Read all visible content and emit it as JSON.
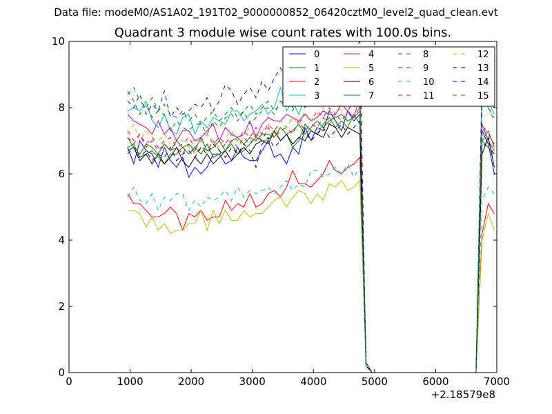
{
  "chart_data": {
    "type": "line",
    "supertitle": "Data file: modeM0/AS1A02_191T02_9000000852_06420cztM0_level2_quad_clean.evt",
    "title": "Quadrant 3 module wise count rates with 100.0s bins.",
    "xlabel": "",
    "ylabel": "",
    "x_offset_label": "+2.18579e8",
    "xlim": [
      0,
      7000
    ],
    "ylim": [
      0,
      10
    ],
    "xticks": [
      0,
      1000,
      2000,
      3000,
      4000,
      5000,
      6000,
      7000
    ],
    "xtick_labels": [
      "0",
      "1000",
      "2000",
      "3000",
      "4000",
      "5000",
      "6000",
      "7000"
    ],
    "yticks": [
      0,
      2,
      4,
      6,
      8,
      10
    ],
    "ytick_labels": [
      "0",
      "2",
      "4",
      "6",
      "8",
      "10"
    ],
    "legend_location": "upper-right",
    "x": [
      960,
      1060,
      1160,
      1260,
      1360,
      1460,
      1560,
      1660,
      1760,
      1860,
      1960,
      2060,
      2160,
      2260,
      2360,
      2460,
      2560,
      2660,
      2760,
      2860,
      2960,
      3060,
      3160,
      3260,
      3360,
      3460,
      3560,
      3660,
      3760,
      3860,
      3960,
      4060,
      4160,
      4260,
      4360,
      4460,
      4560,
      4660,
      4760,
      4860,
      4960,
      5060,
      5160,
      5260,
      5360,
      5460,
      5560,
      5660,
      5760,
      5860,
      5960,
      6060,
      6160,
      6260,
      6360,
      6460,
      6560,
      6660,
      6760,
      6860,
      6960
    ],
    "series": [
      {
        "name": "0",
        "style": "solid",
        "color": "#0000ff",
        "values": [
          6.8,
          6.3,
          7.0,
          6.7,
          6.6,
          6.2,
          6.8,
          6.4,
          6.2,
          6.5,
          5.9,
          6.2,
          6.0,
          6.2,
          6.6,
          6.6,
          6.3,
          6.4,
          6.8,
          6.5,
          6.4,
          6.4,
          6.7,
          7.0,
          6.5,
          6.6,
          6.3,
          6.8,
          6.6,
          7.4,
          7.0,
          7.4,
          7.3,
          7.9,
          7.6,
          7.3,
          7.9,
          7.6,
          7.8,
          0.3,
          0.0,
          0.0,
          0.0,
          0.0,
          0.0,
          0.0,
          0.0,
          0.0,
          0.0,
          0.0,
          0.0,
          0.0,
          0.0,
          0.0,
          0.0,
          0.0,
          0.0,
          0.0,
          7.3,
          6.9,
          6.0
        ]
      },
      {
        "name": "1",
        "style": "solid",
        "color": "#008000",
        "values": [
          6.8,
          6.9,
          6.5,
          6.6,
          6.7,
          6.5,
          6.3,
          6.6,
          6.6,
          6.8,
          6.6,
          6.8,
          6.6,
          6.9,
          6.5,
          6.6,
          6.7,
          6.9,
          6.6,
          6.7,
          6.9,
          7.1,
          7.0,
          7.0,
          7.3,
          7.0,
          7.2,
          6.8,
          7.0,
          7.5,
          7.3,
          7.2,
          7.5,
          7.7,
          7.4,
          7.6,
          7.4,
          7.8,
          7.5,
          0.2,
          0.0,
          0.0,
          0.0,
          0.0,
          0.0,
          0.0,
          0.0,
          0.0,
          0.0,
          0.0,
          0.0,
          0.0,
          0.0,
          0.0,
          0.0,
          0.0,
          0.0,
          0.0,
          7.0,
          6.8,
          6.6
        ]
      },
      {
        "name": "2",
        "style": "solid",
        "color": "#ff0000",
        "values": [
          5.4,
          5.1,
          5.1,
          4.9,
          4.7,
          4.7,
          4.8,
          5.0,
          4.8,
          4.3,
          4.8,
          4.7,
          4.9,
          4.6,
          4.7,
          4.7,
          5.2,
          4.9,
          5.1,
          5.0,
          5.4,
          5.0,
          5.1,
          5.4,
          5.5,
          5.3,
          5.6,
          6.1,
          5.7,
          5.7,
          5.6,
          5.8,
          6.0,
          6.4,
          6.1,
          6.0,
          6.2,
          6.3,
          6.5,
          0.2,
          0.0,
          0.0,
          0.0,
          0.0,
          0.0,
          0.0,
          0.0,
          0.0,
          0.0,
          0.0,
          0.0,
          0.0,
          0.0,
          0.0,
          0.0,
          0.0,
          0.0,
          0.0,
          4.2,
          5.1,
          4.8
        ]
      },
      {
        "name": "3",
        "style": "solid",
        "color": "#00bfbf",
        "values": [
          7.9,
          8.0,
          7.9,
          8.2,
          7.6,
          7.4,
          7.8,
          7.3,
          7.2,
          7.7,
          7.8,
          7.2,
          7.6,
          7.4,
          7.7,
          7.6,
          7.5,
          7.9,
          7.9,
          7.6,
          7.8,
          7.9,
          8.1,
          7.8,
          8.0,
          8.6,
          7.9,
          8.2,
          7.8,
          8.3,
          8.1,
          8.8,
          8.3,
          8.6,
          8.5,
          8.8,
          9.2,
          8.8,
          8.8,
          0.3,
          0.0,
          0.0,
          0.0,
          0.0,
          0.0,
          0.0,
          0.0,
          0.0,
          0.0,
          0.0,
          0.0,
          0.0,
          0.0,
          0.0,
          0.0,
          0.0,
          0.0,
          0.0,
          8.8,
          8.2,
          7.8
        ]
      },
      {
        "name": "4",
        "style": "solid",
        "color": "#bf00bf",
        "values": [
          7.8,
          7.6,
          7.5,
          7.4,
          7.2,
          7.6,
          7.2,
          7.4,
          7.0,
          7.3,
          7.3,
          7.0,
          7.1,
          7.3,
          7.5,
          7.0,
          7.4,
          7.2,
          7.1,
          7.2,
          7.6,
          7.1,
          7.5,
          7.7,
          7.6,
          7.6,
          7.8,
          7.7,
          7.6,
          7.8,
          7.6,
          7.7,
          7.9,
          7.8,
          7.8,
          8.1,
          7.9,
          7.7,
          8.3,
          0.3,
          0.0,
          0.0,
          0.0,
          0.0,
          0.0,
          0.0,
          0.0,
          0.0,
          0.0,
          0.0,
          0.0,
          0.0,
          0.0,
          0.0,
          0.0,
          0.0,
          0.0,
          0.0,
          7.5,
          7.0,
          6.7
        ]
      },
      {
        "name": "5",
        "style": "solid",
        "color": "#bfbf00",
        "values": [
          4.9,
          4.9,
          4.8,
          4.4,
          4.7,
          4.3,
          4.5,
          4.2,
          4.3,
          4.3,
          4.5,
          4.5,
          4.9,
          4.3,
          4.9,
          4.5,
          4.9,
          4.6,
          4.6,
          4.9,
          4.7,
          4.8,
          4.8,
          5.0,
          5.2,
          5.3,
          5.0,
          5.3,
          5.5,
          5.4,
          5.1,
          5.4,
          5.2,
          5.7,
          5.6,
          5.8,
          5.5,
          5.6,
          5.8,
          0.2,
          0.0,
          0.0,
          0.0,
          0.0,
          0.0,
          0.0,
          0.0,
          0.0,
          0.0,
          0.0,
          0.0,
          0.0,
          0.0,
          0.0,
          0.0,
          0.0,
          0.0,
          0.0,
          4.0,
          4.8,
          4.3
        ]
      },
      {
        "name": "6",
        "style": "solid",
        "color": "#000000",
        "values": [
          6.7,
          6.8,
          6.4,
          6.6,
          6.3,
          6.6,
          6.3,
          6.5,
          6.8,
          6.4,
          6.2,
          6.5,
          6.3,
          6.6,
          6.3,
          6.5,
          6.7,
          6.4,
          6.6,
          6.8,
          6.6,
          6.9,
          7.0,
          6.9,
          7.3,
          7.0,
          7.2,
          6.9,
          7.1,
          7.0,
          7.3,
          7.2,
          7.1,
          7.5,
          7.4,
          7.1,
          7.4,
          7.3,
          7.2,
          0.2,
          0.0,
          0.0,
          0.0,
          0.0,
          0.0,
          0.0,
          0.0,
          0.0,
          0.0,
          0.0,
          0.0,
          0.0,
          0.0,
          0.0,
          0.0,
          0.0,
          0.0,
          0.0,
          6.6,
          7.1,
          6.2
        ]
      },
      {
        "name": "7",
        "style": "solid",
        "color": "#008000",
        "values": [
          7.1,
          6.8,
          6.6,
          6.9,
          6.8,
          6.6,
          6.9,
          6.7,
          7.0,
          6.8,
          6.9,
          6.7,
          7.1,
          6.7,
          6.8,
          7.0,
          6.7,
          7.0,
          7.1,
          6.9,
          7.1,
          7.0,
          7.2,
          7.2,
          7.1,
          7.4,
          7.2,
          7.3,
          7.5,
          7.2,
          7.4,
          7.6,
          7.4,
          7.6,
          7.7,
          7.8,
          7.6,
          7.7,
          7.9,
          0.2,
          0.0,
          0.0,
          0.0,
          0.0,
          0.0,
          0.0,
          0.0,
          0.0,
          0.0,
          0.0,
          0.0,
          0.0,
          0.0,
          0.0,
          0.0,
          0.0,
          0.0,
          0.0,
          7.0,
          7.3,
          6.8
        ]
      },
      {
        "name": "8",
        "style": "dashed",
        "color": "#008000",
        "values": [
          8.5,
          8.2,
          7.8,
          8.1,
          7.7,
          7.9,
          7.8,
          7.3,
          7.6,
          7.4,
          7.3,
          7.5,
          7.5,
          7.2,
          7.6,
          7.4,
          7.7,
          7.8,
          7.6,
          7.9,
          7.5,
          7.7,
          7.9,
          8.0,
          7.8,
          8.2,
          8.1,
          7.9,
          8.3,
          8.0,
          8.4,
          8.3,
          8.2,
          8.7,
          8.3,
          8.8,
          8.4,
          8.6,
          8.9,
          0.3,
          0.0,
          0.0,
          0.0,
          0.0,
          0.0,
          0.0,
          0.0,
          0.0,
          0.0,
          0.0,
          0.0,
          0.0,
          0.0,
          0.0,
          0.0,
          0.0,
          0.0,
          0.0,
          8.4,
          8.0,
          7.7
        ]
      },
      {
        "name": "9",
        "style": "dashed",
        "color": "#ff0000",
        "values": [
          7.1,
          6.9,
          7.2,
          6.8,
          7.0,
          6.7,
          6.9,
          6.7,
          6.8,
          6.6,
          6.9,
          6.6,
          6.8,
          6.7,
          7.0,
          6.7,
          6.9,
          7.0,
          6.8,
          7.1,
          6.9,
          7.2,
          7.0,
          7.4,
          7.1,
          7.3,
          7.4,
          7.2,
          7.6,
          7.3,
          7.5,
          7.4,
          7.7,
          7.5,
          7.8,
          7.6,
          7.9,
          7.7,
          8.0,
          0.2,
          0.0,
          0.0,
          0.0,
          0.0,
          0.0,
          0.0,
          0.0,
          0.0,
          0.0,
          0.0,
          0.0,
          0.0,
          0.0,
          0.0,
          0.0,
          0.0,
          0.0,
          0.0,
          7.5,
          7.2,
          6.9
        ]
      },
      {
        "name": "10",
        "style": "dashed",
        "color": "#00bfbf",
        "values": [
          5.3,
          5.6,
          5.2,
          5.1,
          5.4,
          4.9,
          5.3,
          5.2,
          5.4,
          5.4,
          4.9,
          5.2,
          5.0,
          5.3,
          5.2,
          5.3,
          5.5,
          5.2,
          5.6,
          5.3,
          5.5,
          5.4,
          5.5,
          5.6,
          5.4,
          5.6,
          5.8,
          5.5,
          5.7,
          5.6,
          6.1,
          6.1,
          5.9,
          6.0,
          6.2,
          6.0,
          6.3,
          5.9,
          6.2,
          0.2,
          0.0,
          0.0,
          0.0,
          0.0,
          0.0,
          0.0,
          0.0,
          0.0,
          0.0,
          0.0,
          0.0,
          0.0,
          0.0,
          0.0,
          0.0,
          0.0,
          0.0,
          0.0,
          5.2,
          5.6,
          5.4
        ]
      },
      {
        "name": "11",
        "style": "dashed",
        "color": "#bf00bf",
        "values": [
          7.3,
          7.0,
          7.2,
          6.9,
          7.1,
          6.8,
          7.0,
          7.1,
          6.8,
          6.9,
          7.1,
          6.8,
          7.0,
          7.2,
          6.9,
          7.1,
          6.9,
          7.2,
          7.0,
          7.3,
          7.1,
          7.4,
          7.2,
          7.5,
          7.3,
          7.6,
          7.4,
          7.7,
          7.5,
          7.8,
          7.6,
          7.9,
          7.7,
          8.0,
          7.8,
          8.1,
          7.9,
          8.2,
          8.0,
          0.2,
          0.0,
          0.0,
          0.0,
          0.0,
          0.0,
          0.0,
          0.0,
          0.0,
          0.0,
          0.0,
          0.0,
          0.0,
          0.0,
          0.0,
          0.0,
          0.0,
          0.0,
          0.0,
          7.4,
          7.1,
          6.9
        ]
      },
      {
        "name": "12",
        "style": "dashed",
        "color": "#bfbf00",
        "values": [
          7.2,
          7.5,
          7.0,
          7.3,
          7.1,
          7.0,
          7.2,
          6.9,
          7.1,
          7.0,
          6.8,
          7.1,
          6.9,
          7.2,
          7.0,
          6.8,
          7.1,
          7.3,
          7.0,
          7.2,
          7.4,
          7.1,
          7.3,
          7.5,
          7.2,
          7.6,
          7.4,
          7.7,
          7.5,
          7.9,
          7.6,
          7.8,
          8.0,
          7.7,
          8.1,
          7.9,
          8.2,
          8.0,
          8.3,
          0.2,
          0.0,
          0.0,
          0.0,
          0.0,
          0.0,
          0.0,
          0.0,
          0.0,
          0.0,
          0.0,
          0.0,
          0.0,
          0.0,
          0.0,
          0.0,
          0.0,
          0.0,
          0.0,
          7.2,
          7.0,
          6.8
        ]
      },
      {
        "name": "13",
        "style": "dashed",
        "color": "#000000",
        "values": [
          6.6,
          6.8,
          6.5,
          6.7,
          6.4,
          6.6,
          6.5,
          6.8,
          6.4,
          6.6,
          6.7,
          6.5,
          6.8,
          6.6,
          6.9,
          6.7,
          6.5,
          6.8,
          6.6,
          6.9,
          6.7,
          6.2,
          6.9,
          7.1,
          6.8,
          7.0,
          7.2,
          6.9,
          7.1,
          7.3,
          7.0,
          7.2,
          7.4,
          7.1,
          7.3,
          7.5,
          7.2,
          7.4,
          7.6,
          0.2,
          0.0,
          0.0,
          0.0,
          0.0,
          0.0,
          0.0,
          0.0,
          0.0,
          0.0,
          0.0,
          0.0,
          0.0,
          0.0,
          0.0,
          0.0,
          0.0,
          0.0,
          0.0,
          6.8,
          7.0,
          6.5
        ]
      },
      {
        "name": "14",
        "style": "dashed",
        "color": "#0000ff",
        "values": [
          8.2,
          8.0,
          8.4,
          7.8,
          8.1,
          7.9,
          8.5,
          7.7,
          8.0,
          7.8,
          7.9,
          8.1,
          8.0,
          8.3,
          7.9,
          8.2,
          8.7,
          8.5,
          8.1,
          8.4,
          8.6,
          8.3,
          8.8,
          8.5,
          8.9,
          9.2,
          8.8,
          9.0,
          8.7,
          9.1,
          8.9,
          9.4,
          9.1,
          9.6,
          9.3,
          9.8,
          9.5,
          9.7,
          10.0,
          0.3,
          0.0,
          0.0,
          0.0,
          0.0,
          0.0,
          0.0,
          0.0,
          0.0,
          0.0,
          0.0,
          0.0,
          0.0,
          0.0,
          0.0,
          0.0,
          0.0,
          0.0,
          0.0,
          9.0,
          8.5,
          8.0
        ]
      },
      {
        "name": "15",
        "style": "dashed",
        "color": "#008000",
        "values": [
          8.4,
          8.6,
          8.2,
          8.0,
          8.3,
          7.9,
          8.1,
          7.8,
          7.7,
          7.9,
          7.6,
          7.8,
          7.5,
          7.7,
          7.9,
          7.6,
          7.8,
          8.0,
          7.7,
          7.9,
          8.1,
          7.8,
          8.0,
          8.2,
          7.9,
          8.1,
          8.3,
          8.0,
          8.2,
          8.4,
          8.1,
          8.3,
          8.5,
          8.2,
          8.6,
          8.4,
          8.8,
          8.5,
          8.7,
          0.3,
          0.0,
          0.0,
          0.0,
          0.0,
          0.0,
          0.0,
          0.0,
          0.0,
          0.0,
          0.0,
          0.0,
          0.0,
          0.0,
          0.0,
          0.0,
          0.0,
          0.0,
          0.0,
          8.2,
          8.0,
          7.6
        ]
      }
    ]
  }
}
